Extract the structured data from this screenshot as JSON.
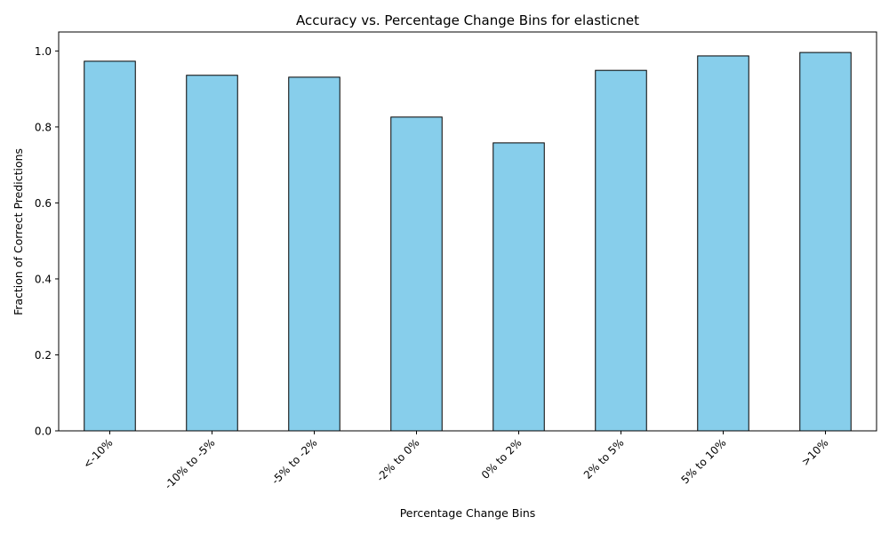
{
  "chart_data": {
    "type": "bar",
    "title": "Accuracy vs. Percentage Change Bins for elasticnet",
    "xlabel": "Percentage Change Bins",
    "ylabel": "Fraction of Correct Predictions",
    "categories": [
      "<-10%",
      "-10% to -5%",
      "-5% to -2%",
      "-2% to 0%",
      "0% to 2%",
      "2% to 5%",
      "5% to 10%",
      ">10%"
    ],
    "values": [
      0.973,
      0.936,
      0.931,
      0.826,
      0.758,
      0.949,
      0.987,
      0.996
    ],
    "ylim": [
      0,
      1.05
    ],
    "yticks": [
      "0.0",
      "0.2",
      "0.4",
      "0.6",
      "0.8",
      "1.0"
    ],
    "bar_color": "#87CEEB",
    "bar_edge_color": "#000000",
    "grid": false,
    "legend": "none"
  }
}
